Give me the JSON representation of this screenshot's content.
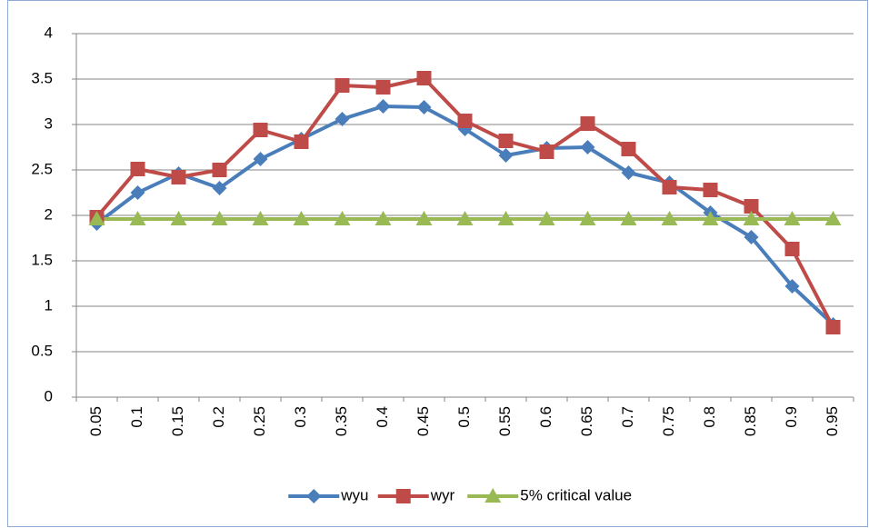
{
  "chart_data": {
    "type": "line",
    "categories": [
      "0.05",
      "0.1",
      "0.15",
      "0.2",
      "0.25",
      "0.3",
      "0.35",
      "0.4",
      "0.45",
      "0.5",
      "0.55",
      "0.6",
      "0.65",
      "0.7",
      "0.75",
      "0.8",
      "0.85",
      "0.9",
      "0.95"
    ],
    "series": [
      {
        "name": "wyu",
        "color": "#4a7ebb",
        "marker": "diamond",
        "values": [
          1.91,
          2.25,
          2.46,
          2.3,
          2.62,
          2.84,
          3.06,
          3.2,
          3.19,
          2.95,
          2.66,
          2.74,
          2.75,
          2.47,
          2.36,
          2.03,
          1.76,
          1.22,
          0.8
        ]
      },
      {
        "name": "wyr",
        "color": "#be4b48",
        "marker": "square",
        "values": [
          1.98,
          2.51,
          2.42,
          2.5,
          2.94,
          2.81,
          3.43,
          3.41,
          3.51,
          3.04,
          2.82,
          2.7,
          3.01,
          2.73,
          2.31,
          2.28,
          2.1,
          1.63,
          0.77
        ]
      },
      {
        "name": "5% critical value",
        "color": "#98b954",
        "marker": "triangle",
        "values": [
          1.96,
          1.96,
          1.96,
          1.96,
          1.96,
          1.96,
          1.96,
          1.96,
          1.96,
          1.96,
          1.96,
          1.96,
          1.96,
          1.96,
          1.96,
          1.96,
          1.96,
          1.96,
          1.96
        ]
      }
    ],
    "ylim": [
      0,
      4
    ],
    "yticks": [
      0,
      0.5,
      1,
      1.5,
      2,
      2.5,
      3,
      3.5,
      4
    ],
    "grid": true,
    "legend": "bottom"
  }
}
